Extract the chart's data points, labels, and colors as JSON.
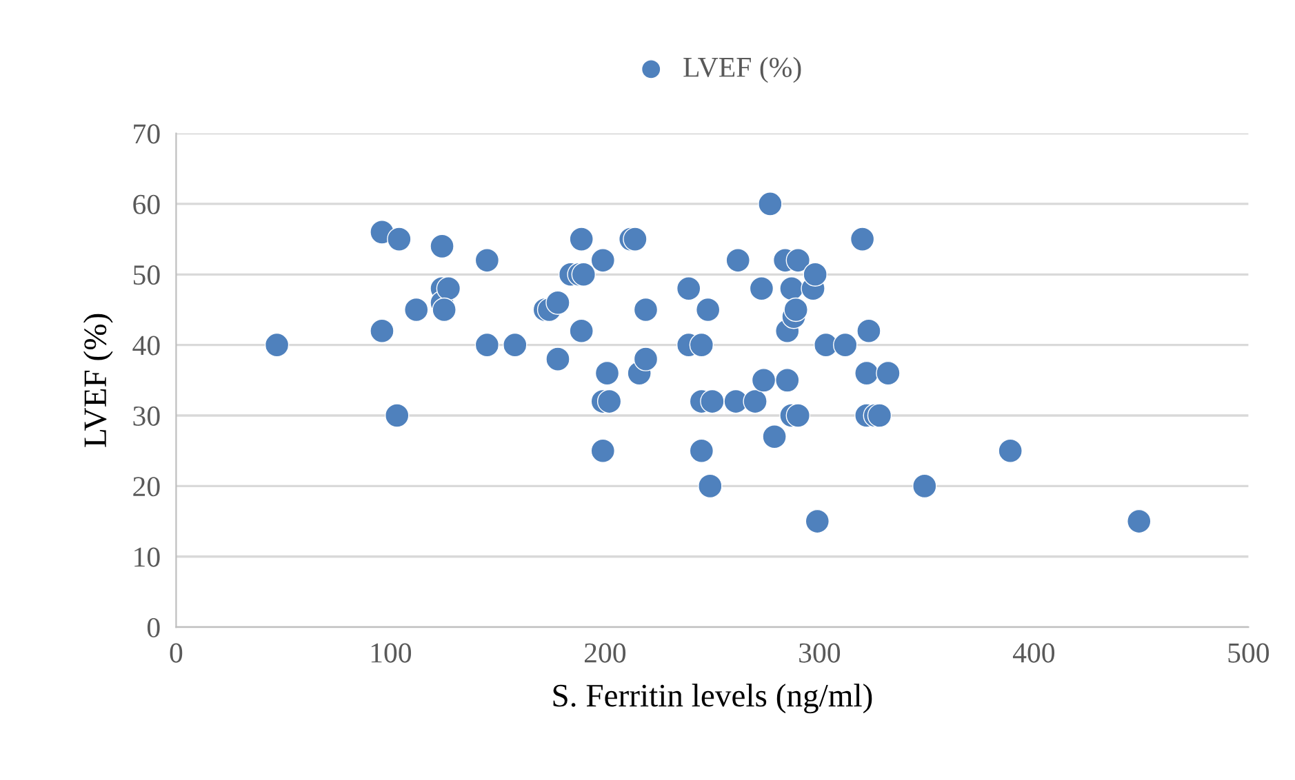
{
  "chart_data": {
    "type": "scatter",
    "xlabel": "S. Ferritin levels (ng/ml)",
    "ylabel": "LVEF (%)",
    "xlim": [
      0,
      500
    ],
    "xticks": [
      0,
      100,
      200,
      300,
      400,
      500
    ],
    "ylim": [
      0,
      70
    ],
    "yticks": [
      0,
      10,
      20,
      30,
      40,
      50,
      60,
      70
    ],
    "grid": "y",
    "legend": "top",
    "marker": "circle",
    "series": [
      {
        "name": "LVEF (%)",
        "color": "#4f81bd",
        "x": [
          47,
          96,
          96,
          104,
          103,
          112,
          124,
          124,
          124,
          127,
          125,
          145,
          145,
          158,
          172,
          174,
          178,
          178,
          184,
          188,
          189,
          189,
          190,
          199,
          199,
          202,
          199,
          201,
          212,
          214,
          216,
          219,
          219,
          239,
          239,
          245,
          245,
          245,
          248,
          250,
          249,
          262,
          261,
          270,
          273,
          274,
          277,
          279,
          284,
          290,
          285,
          285,
          287,
          288,
          289,
          287,
          290,
          297,
          298,
          299,
          303,
          312,
          320,
          322,
          322,
          323,
          326,
          328,
          332,
          349,
          389,
          449
        ],
        "values": [
          40,
          56,
          42,
          55,
          30,
          45,
          54,
          48,
          46,
          48,
          45,
          52,
          40,
          40,
          45,
          45,
          46,
          38,
          50,
          50,
          55,
          42,
          50,
          52,
          32,
          32,
          25,
          36,
          55,
          55,
          36,
          38,
          45,
          48,
          40,
          40,
          25,
          32,
          45,
          32,
          20,
          52,
          32,
          32,
          48,
          35,
          60,
          27,
          52,
          52,
          42,
          35,
          48,
          44,
          45,
          30,
          30,
          48,
          50,
          15,
          40,
          40,
          55,
          36,
          30,
          42,
          30,
          30,
          36,
          20,
          25,
          15
        ]
      }
    ]
  }
}
